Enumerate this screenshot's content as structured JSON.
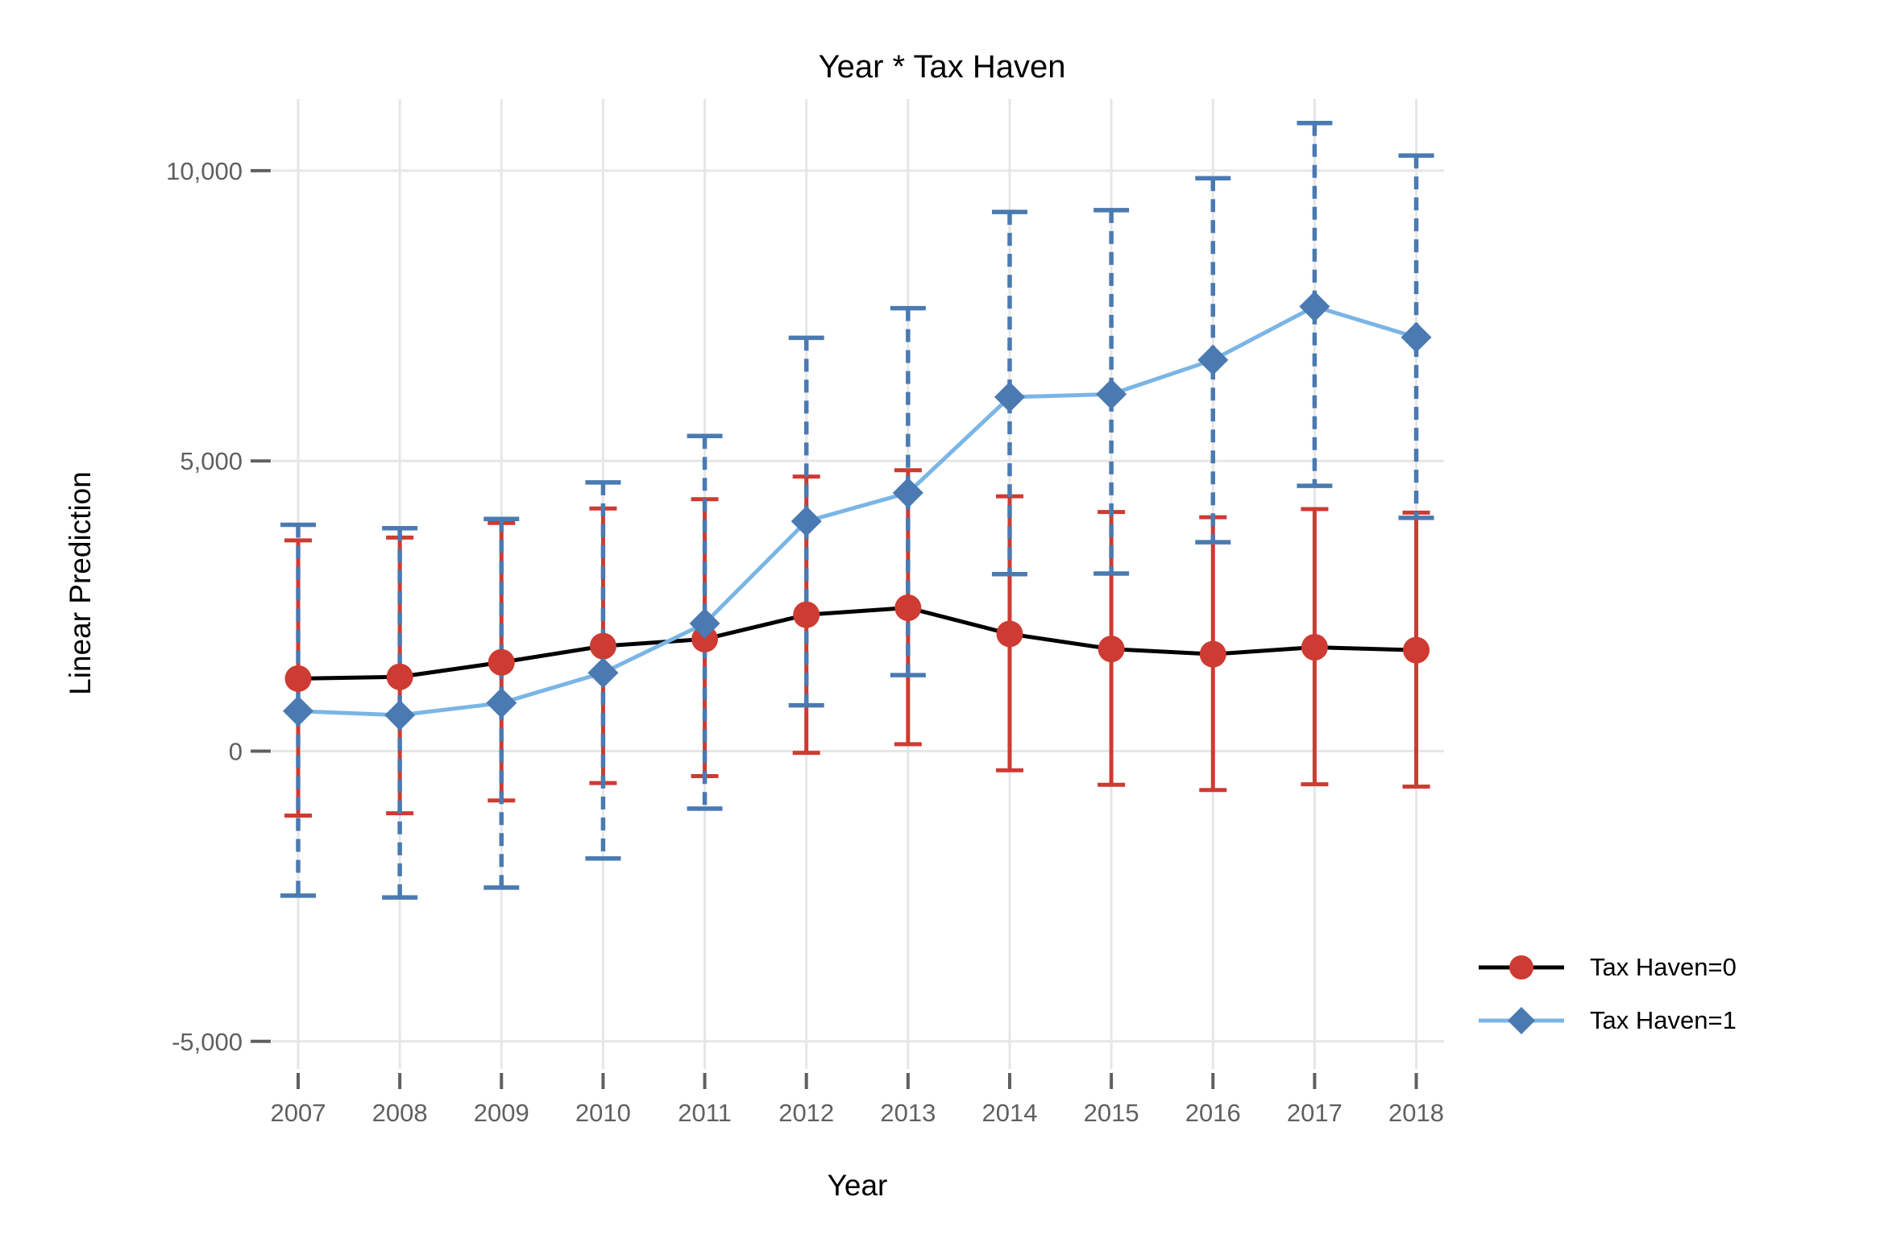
{
  "title": {
    "text": "Year * Tax Haven"
  },
  "axes": {
    "x": {
      "label": "Year"
    },
    "y": {
      "label": "Linear Prediction"
    }
  },
  "legend": {
    "entries": [
      {
        "label": "Tax Haven=0",
        "marker": "circle",
        "marker_icon": "red-circle-marker-icon",
        "line_color": "#000000",
        "marker_color": "#cd3b32"
      },
      {
        "label": "Tax Haven=1",
        "marker": "diamond",
        "marker_icon": "blue-diamond-marker-icon",
        "line_color": "#7ab5e5",
        "marker_color": "#4a7ab1"
      }
    ]
  },
  "colors": {
    "grid": "#e6e6e6",
    "tick": "#606060",
    "red": "#cd3b32",
    "blue": "#4a7ab1",
    "light_blue": "#7ab5e5",
    "black": "#000000"
  },
  "chart_data": {
    "type": "line",
    "title": "Year * Tax Haven",
    "xlabel": "Year",
    "ylabel": "Linear Prediction",
    "x": [
      2007,
      2008,
      2009,
      2010,
      2011,
      2012,
      2013,
      2014,
      2015,
      2016,
      2017,
      2018
    ],
    "ylim": [
      -5000,
      11300
    ],
    "yticks": [
      {
        "value": 10000,
        "label": "10,000"
      },
      {
        "value": 5000,
        "label": "5,000"
      },
      {
        "value": 0,
        "label": "0"
      },
      {
        "value": -5000,
        "label": "-5,000"
      }
    ],
    "grid": true,
    "legend_position": "bottom-right",
    "error_bars": "95% CI, capped; series 0 solid red, series 1 dashed blue",
    "series": [
      {
        "name": "Tax Haven=0",
        "marker": "circle",
        "marker_color": "#cd3b32",
        "line_color": "#000000",
        "ci_color": "#cd3b32",
        "ci_style": "solid",
        "values": [
          1250,
          1280,
          1530,
          1810,
          1930,
          2350,
          2470,
          2020,
          1760,
          1670,
          1790,
          1740
        ],
        "ci_low": [
          -1110,
          -1070,
          -850,
          -550,
          -430,
          -30,
          120,
          -330,
          -580,
          -670,
          -570,
          -610
        ],
        "ci_high": [
          3630,
          3680,
          3930,
          4180,
          4340,
          4730,
          4840,
          4390,
          4120,
          4030,
          4170,
          4110
        ]
      },
      {
        "name": "Tax Haven=1",
        "marker": "diamond",
        "marker_color": "#4a7ab1",
        "line_color": "#7ab5e5",
        "ci_color": "#4a7ab1",
        "ci_style": "dashed",
        "values": [
          690,
          620,
          830,
          1350,
          2200,
          3960,
          4450,
          6100,
          6150,
          6740,
          7660,
          7130
        ],
        "ci_low": [
          -2490,
          -2520,
          -2350,
          -1850,
          -990,
          790,
          1310,
          3050,
          3060,
          3600,
          4570,
          4020
        ],
        "ci_high": [
          3900,
          3840,
          4000,
          4630,
          5430,
          7120,
          7630,
          9290,
          9320,
          9870,
          10820,
          10260
        ]
      }
    ]
  }
}
